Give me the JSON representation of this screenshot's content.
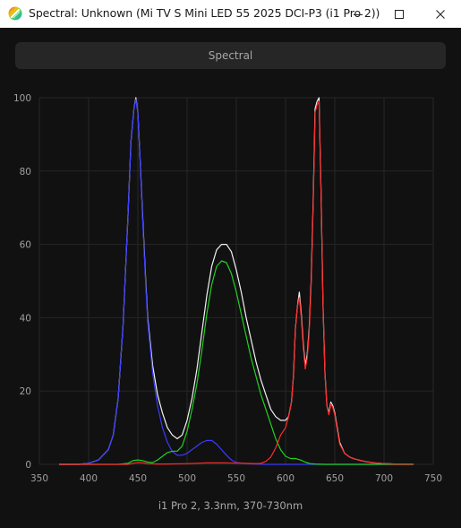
{
  "window": {
    "title": "Spectral: Unknown (Mi TV S Mini LED 55 2025 DCI-P3 (i1 Pro 2))",
    "controls": [
      "minimize-icon",
      "maximize-icon",
      "close-icon"
    ]
  },
  "toolbar": {
    "mode_label": "Spectral"
  },
  "caption": "i1 Pro 2, 3.3nm, 370-730nm",
  "colors": {
    "white": "#f2f2f2",
    "blue": "#3b3bff",
    "green": "#1fd21f",
    "red": "#ff2a2a",
    "grid": "#262626",
    "axis_text": "#a0a0a0"
  },
  "chart_data": {
    "type": "line",
    "xlim": [
      350,
      750
    ],
    "ylim": [
      0,
      100
    ],
    "x_ticks": [
      "350",
      "400",
      "450",
      "500",
      "550",
      "600",
      "650",
      "700",
      "750"
    ],
    "y_ticks": [
      "0",
      "20",
      "40",
      "60",
      "80",
      "100"
    ],
    "grid": true,
    "series": [
      {
        "color": "white",
        "x": [
          370,
          380,
          390,
          400,
          410,
          420,
          425,
          430,
          435,
          440,
          443,
          446,
          448,
          450,
          452,
          455,
          458,
          460,
          465,
          470,
          475,
          480,
          485,
          490,
          495,
          500,
          505,
          510,
          515,
          520,
          525,
          530,
          535,
          540,
          545,
          550,
          555,
          560,
          565,
          570,
          575,
          580,
          585,
          590,
          595,
          600,
          603,
          606,
          608,
          610,
          612,
          614,
          616,
          618,
          620,
          622,
          624,
          626,
          628,
          630,
          632,
          634,
          636,
          638,
          640,
          642,
          644,
          646,
          648,
          650,
          655,
          660,
          665,
          670,
          680,
          690,
          700,
          710,
          720,
          730
        ],
        "y": [
          0,
          0,
          0,
          0.3,
          1.2,
          4,
          8,
          18,
          38,
          68,
          88,
          97,
          100,
          96,
          85,
          67,
          50,
          40,
          27,
          19,
          14,
          10,
          8,
          7,
          8,
          12,
          18,
          26,
          36,
          46,
          54,
          58.5,
          60,
          60,
          58,
          53,
          47,
          40,
          34,
          28,
          23,
          19,
          15,
          13,
          12,
          12,
          13,
          17,
          24,
          37,
          43,
          47,
          41,
          33,
          27,
          30,
          37,
          50,
          71,
          97,
          99,
          100,
          75,
          44,
          25,
          16,
          14,
          17,
          16,
          14,
          6,
          3,
          2,
          1.5,
          0.8,
          0.4,
          0.2,
          0.1,
          0.1,
          0.1
        ]
      },
      {
        "color": "blue",
        "x": [
          370,
          380,
          390,
          400,
          410,
          420,
          425,
          430,
          435,
          440,
          443,
          446,
          448,
          450,
          452,
          455,
          458,
          460,
          465,
          470,
          475,
          480,
          485,
          490,
          495,
          500,
          505,
          510,
          515,
          520,
          525,
          530,
          535,
          540,
          545,
          550,
          560,
          570,
          580,
          600,
          650,
          700,
          730
        ],
        "y": [
          0,
          0,
          0,
          0.3,
          1.2,
          4,
          8,
          18,
          38,
          68,
          88,
          97,
          99.5,
          96,
          85,
          66,
          49,
          39,
          25,
          16,
          10,
          6,
          3.5,
          2.5,
          2.5,
          3,
          4,
          5,
          6,
          6.5,
          6.5,
          5.5,
          4,
          2.5,
          1.2,
          0.5,
          0.2,
          0.1,
          0,
          0,
          0,
          0,
          0
        ]
      },
      {
        "color": "green",
        "x": [
          370,
          400,
          430,
          440,
          445,
          450,
          455,
          460,
          465,
          470,
          475,
          480,
          485,
          490,
          495,
          500,
          505,
          510,
          515,
          520,
          525,
          530,
          535,
          540,
          545,
          550,
          555,
          560,
          565,
          570,
          575,
          580,
          585,
          590,
          595,
          600,
          605,
          610,
          615,
          620,
          625,
          630,
          640,
          660,
          700,
          730
        ],
        "y": [
          0,
          0,
          0,
          0.3,
          1,
          1.2,
          1,
          0.6,
          0.5,
          1.2,
          2.2,
          3.2,
          3.6,
          3.6,
          5,
          9,
          15,
          22,
          31,
          41,
          49,
          54,
          55.5,
          55,
          52,
          47,
          41,
          35,
          29,
          24,
          19,
          15,
          11,
          7,
          4,
          2.2,
          1.6,
          1.6,
          1.2,
          0.6,
          0.2,
          0.1,
          0,
          0,
          0,
          0
        ]
      },
      {
        "color": "red",
        "x": [
          370,
          400,
          440,
          445,
          450,
          455,
          460,
          470,
          480,
          500,
          520,
          540,
          560,
          570,
          575,
          580,
          585,
          590,
          595,
          600,
          603,
          606,
          608,
          610,
          612,
          614,
          616,
          618,
          620,
          622,
          624,
          626,
          628,
          630,
          632,
          634,
          636,
          638,
          640,
          642,
          644,
          646,
          648,
          650,
          655,
          660,
          665,
          670,
          680,
          690,
          700,
          710,
          720,
          730
        ],
        "y": [
          0,
          0,
          0,
          0.3,
          0.5,
          0.4,
          0.2,
          0.1,
          0.1,
          0.2,
          0.4,
          0.4,
          0.3,
          0.2,
          0.3,
          0.8,
          2,
          4.5,
          8,
          10,
          13,
          17,
          24,
          37,
          43,
          45.5,
          40,
          32,
          26,
          29,
          36,
          49,
          70,
          96,
          98,
          99,
          75,
          44,
          25,
          16,
          13.5,
          16.5,
          15.5,
          13.5,
          5.5,
          3,
          2,
          1.5,
          0.8,
          0.4,
          0.2,
          0.1,
          0.1,
          0.1
        ]
      }
    ]
  }
}
